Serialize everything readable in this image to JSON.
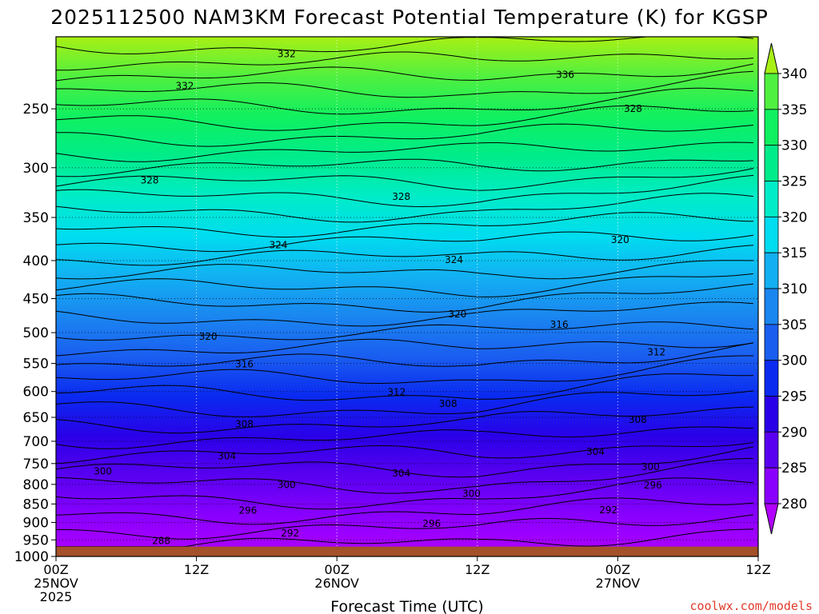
{
  "chart_data": {
    "type": "heatmap",
    "title": "2025112500 NAM3KM Forecast Potential Temperature (K) for KGSP",
    "xlabel": "Forecast Time (UTC)",
    "ylabel": "",
    "x_ticks": [
      {
        "hour": 0,
        "line1": "00Z",
        "line2": "25NOV",
        "line3": "2025"
      },
      {
        "hour": 12,
        "line1": "12Z",
        "line2": "",
        "line3": ""
      },
      {
        "hour": 24,
        "line1": "00Z",
        "line2": "26NOV",
        "line3": ""
      },
      {
        "hour": 36,
        "line1": "12Z",
        "line2": "",
        "line3": ""
      },
      {
        "hour": 48,
        "line1": "00Z",
        "line2": "27NOV",
        "line3": ""
      },
      {
        "hour": 60,
        "line1": "12Z",
        "line2": "",
        "line3": ""
      }
    ],
    "xlim_hours": [
      0,
      60
    ],
    "y_ticks": [
      "250",
      "300",
      "350",
      "400",
      "450",
      "500",
      "550",
      "600",
      "650",
      "700",
      "750",
      "800",
      "850",
      "900",
      "950",
      "1000"
    ],
    "y_tick_values": [
      250,
      300,
      350,
      400,
      450,
      500,
      550,
      600,
      650,
      700,
      750,
      800,
      850,
      900,
      950,
      1000
    ],
    "ylim_hpa": [
      200,
      1000
    ],
    "y_scale": "log",
    "ground_pressure_hpa": 970,
    "grid": true,
    "colorbar": {
      "ticks": [
        "340",
        "335",
        "330",
        "325",
        "320",
        "315",
        "310",
        "305",
        "300",
        "295",
        "290",
        "285",
        "280"
      ],
      "levels": [
        280,
        285,
        290,
        295,
        300,
        305,
        310,
        315,
        320,
        325,
        330,
        335,
        340
      ],
      "colors": [
        "#b200ff",
        "#8a00ff",
        "#5a00f0",
        "#2a00e8",
        "#0a2af0",
        "#1a5ef0",
        "#1a86f0",
        "#12b0f2",
        "#00dcf0",
        "#00ecc8",
        "#00ec8a",
        "#10f060",
        "#50f040",
        "#a8f014"
      ],
      "extend": "both"
    },
    "contour_labels": [
      {
        "text": "332",
        "hour": 19.7,
        "hpa": 211
      },
      {
        "text": "336",
        "hour": 43.5,
        "hpa": 225
      },
      {
        "text": "332",
        "hour": 11,
        "hpa": 233
      },
      {
        "text": "328",
        "hour": 49.3,
        "hpa": 250
      },
      {
        "text": "328",
        "hour": 8,
        "hpa": 312
      },
      {
        "text": "328",
        "hour": 29.5,
        "hpa": 328
      },
      {
        "text": "324",
        "hour": 19,
        "hpa": 381
      },
      {
        "text": "324",
        "hour": 34,
        "hpa": 399
      },
      {
        "text": "320",
        "hour": 48.2,
        "hpa": 375
      },
      {
        "text": "320",
        "hour": 34.3,
        "hpa": 472
      },
      {
        "text": "316",
        "hour": 43,
        "hpa": 488
      },
      {
        "text": "320",
        "hour": 13,
        "hpa": 506
      },
      {
        "text": "316",
        "hour": 16.1,
        "hpa": 551
      },
      {
        "text": "312",
        "hour": 51.3,
        "hpa": 531
      },
      {
        "text": "312",
        "hour": 29.1,
        "hpa": 601
      },
      {
        "text": "308",
        "hour": 33.5,
        "hpa": 623
      },
      {
        "text": "308",
        "hour": 16.1,
        "hpa": 664
      },
      {
        "text": "308",
        "hour": 49.7,
        "hpa": 655
      },
      {
        "text": "304",
        "hour": 14.6,
        "hpa": 733
      },
      {
        "text": "304",
        "hour": 46.1,
        "hpa": 723
      },
      {
        "text": "300",
        "hour": 4,
        "hpa": 768
      },
      {
        "text": "304",
        "hour": 29.5,
        "hpa": 773
      },
      {
        "text": "300",
        "hour": 50.8,
        "hpa": 758
      },
      {
        "text": "300",
        "hour": 19.7,
        "hpa": 801
      },
      {
        "text": "296",
        "hour": 51,
        "hpa": 802
      },
      {
        "text": "300",
        "hour": 35.5,
        "hpa": 823
      },
      {
        "text": "296",
        "hour": 16.4,
        "hpa": 867
      },
      {
        "text": "292",
        "hour": 47.2,
        "hpa": 866
      },
      {
        "text": "296",
        "hour": 32.1,
        "hpa": 904
      },
      {
        "text": "292",
        "hour": 20,
        "hpa": 931
      },
      {
        "text": "288",
        "hour": 9,
        "hpa": 953
      }
    ],
    "credit": "coolwx.com/models"
  }
}
